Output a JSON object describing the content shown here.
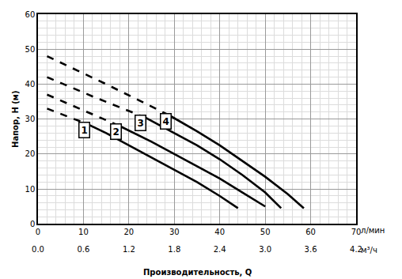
{
  "chart_data": {
    "type": "line",
    "ylabel": "Напор, H (м)",
    "x_title": "Производительность, Q",
    "x_unit": "л/мин",
    "x2_unit": "м³/ч",
    "color": "#000000",
    "grid": true,
    "xlim": [
      0,
      70
    ],
    "xticks": [
      0,
      10,
      20,
      30,
      40,
      50,
      60,
      70
    ],
    "x2lim": [
      0,
      4.2
    ],
    "x2ticks": [
      {
        "value": 0,
        "label": "0.0"
      },
      0.6,
      1.2,
      1.8,
      2.4,
      {
        "value": 3,
        "label": "3.0"
      },
      3.6,
      4.2
    ],
    "ylim": [
      0,
      60
    ],
    "yticks": [
      0,
      10,
      20,
      30,
      40,
      50,
      60
    ],
    "series": [
      {
        "name": "1",
        "line_style": "dashed",
        "x": [
          2,
          7,
          11
        ],
        "values": [
          33,
          30.5,
          28.5
        ]
      },
      {
        "name": "1",
        "line_style": "solid",
        "x": [
          11,
          15,
          20,
          25,
          30,
          35,
          40,
          44
        ],
        "values": [
          28.5,
          26,
          22.5,
          19,
          15.5,
          12,
          8,
          4.5
        ]
      },
      {
        "name": "2",
        "line_style": "dashed",
        "x": [
          2,
          10,
          18
        ],
        "values": [
          37,
          32.5,
          28
        ]
      },
      {
        "name": "2",
        "line_style": "solid",
        "x": [
          18,
          25,
          30,
          35,
          40,
          45,
          50
        ],
        "values": [
          28,
          23.5,
          20,
          16.5,
          13,
          9,
          5
        ]
      },
      {
        "name": "3",
        "line_style": "dashed",
        "x": [
          2,
          12,
          23.5
        ],
        "values": [
          42,
          36.5,
          30.5
        ]
      },
      {
        "name": "3",
        "line_style": "solid",
        "x": [
          23.5,
          30,
          35,
          40,
          45,
          50,
          53.5
        ],
        "values": [
          30.5,
          26,
          22.5,
          18.5,
          14,
          9,
          4.5
        ]
      },
      {
        "name": "4",
        "line_style": "dashed",
        "x": [
          2,
          15,
          29
        ],
        "values": [
          48,
          40,
          31
        ]
      },
      {
        "name": "4",
        "line_style": "solid",
        "x": [
          29,
          35,
          40,
          45,
          50,
          55,
          58.5
        ],
        "values": [
          31,
          26.5,
          22.5,
          18,
          13.5,
          8.5,
          4.5
        ]
      }
    ]
  }
}
